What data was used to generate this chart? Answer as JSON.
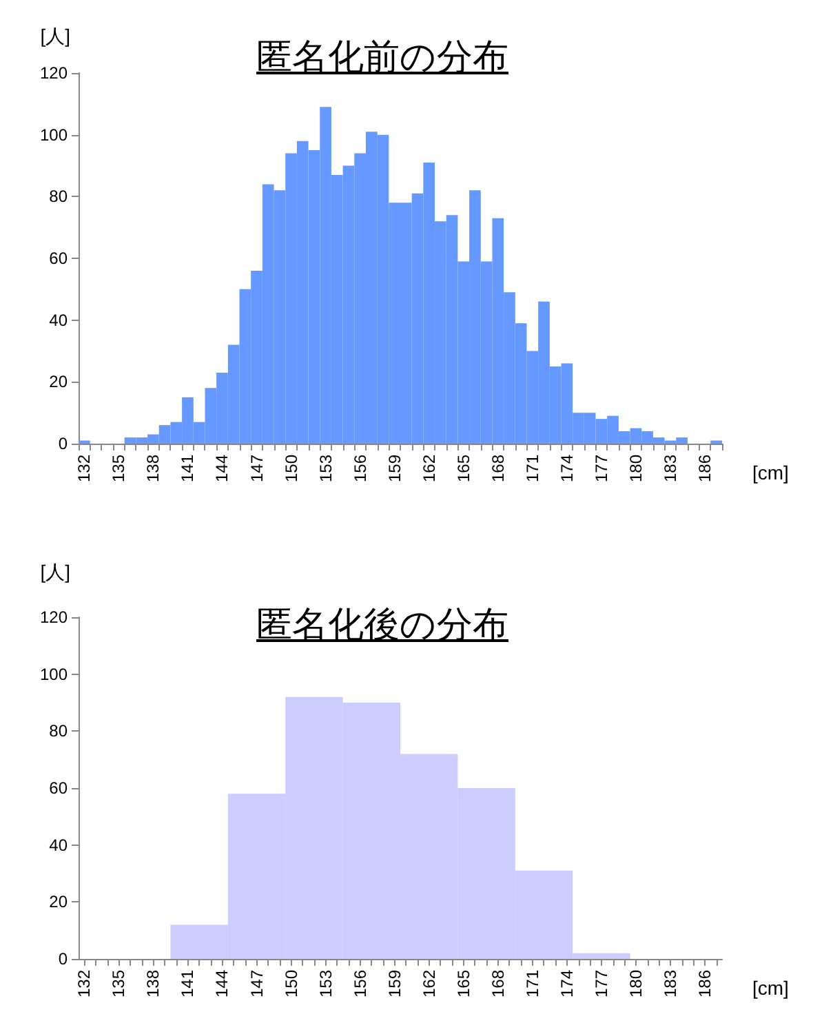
{
  "chart_data": [
    {
      "type": "bar",
      "title": "匿名化前の分布",
      "xlabel": "[cm]",
      "ylabel": "[人]",
      "color": "#6699ff",
      "ylim": [
        0,
        120
      ],
      "yticks": [
        0,
        20,
        40,
        60,
        80,
        100,
        120
      ],
      "categories": [
        "132",
        null,
        null,
        "135",
        null,
        null,
        "138",
        null,
        null,
        "141",
        null,
        null,
        "144",
        null,
        null,
        "147",
        null,
        null,
        "150",
        null,
        null,
        "153",
        null,
        null,
        "156",
        null,
        null,
        "159",
        null,
        null,
        "162",
        null,
        null,
        "165",
        null,
        null,
        "168",
        null,
        null,
        "171",
        null,
        null,
        "174",
        null,
        null,
        "177",
        null,
        null,
        "180",
        null,
        null,
        "183",
        null,
        null,
        "186",
        null
      ],
      "values": [
        1,
        0,
        0,
        0,
        2,
        2,
        3,
        6,
        7,
        15,
        7,
        18,
        23,
        32,
        50,
        56,
        84,
        82,
        94,
        98,
        95,
        109,
        87,
        90,
        94,
        101,
        100,
        78,
        78,
        81,
        91,
        72,
        74,
        59,
        82,
        59,
        73,
        49,
        39,
        30,
        46,
        25,
        26,
        10,
        10,
        8,
        9,
        4,
        5,
        4,
        2,
        1,
        2,
        0,
        0,
        1
      ]
    },
    {
      "type": "histogram",
      "title": "匿名化後の分布",
      "xlabel": "[cm]",
      "ylabel": "[人]",
      "color": "#ccccff",
      "ylim": [
        0,
        120
      ],
      "yticks": [
        0,
        20,
        40,
        60,
        80,
        100,
        120
      ],
      "xlim": [
        131.5,
        187.5
      ],
      "xticks": [
        132,
        {
          "value": 133,
          "label": null
        },
        {
          "value": 134,
          "label": null
        },
        135,
        {
          "value": 136,
          "label": null
        },
        {
          "value": 137,
          "label": null
        },
        138,
        {
          "value": 139,
          "label": null
        },
        {
          "value": 140,
          "label": null
        },
        141,
        {
          "value": 142,
          "label": null
        },
        {
          "value": 143,
          "label": null
        },
        144,
        {
          "value": 145,
          "label": null
        },
        {
          "value": 146,
          "label": null
        },
        147,
        {
          "value": 148,
          "label": null
        },
        {
          "value": 149,
          "label": null
        },
        150,
        {
          "value": 151,
          "label": null
        },
        {
          "value": 152,
          "label": null
        },
        153,
        {
          "value": 154,
          "label": null
        },
        {
          "value": 155,
          "label": null
        },
        156,
        {
          "value": 157,
          "label": null
        },
        {
          "value": 158,
          "label": null
        },
        159,
        {
          "value": 160,
          "label": null
        },
        {
          "value": 161,
          "label": null
        },
        162,
        {
          "value": 163,
          "label": null
        },
        {
          "value": 164,
          "label": null
        },
        165,
        {
          "value": 166,
          "label": null
        },
        {
          "value": 167,
          "label": null
        },
        168,
        {
          "value": 169,
          "label": null
        },
        {
          "value": 170,
          "label": null
        },
        171,
        {
          "value": 172,
          "label": null
        },
        {
          "value": 173,
          "label": null
        },
        174,
        {
          "value": 175,
          "label": null
        },
        {
          "value": 176,
          "label": null
        },
        177,
        {
          "value": 178,
          "label": null
        },
        {
          "value": 179,
          "label": null
        },
        180,
        {
          "value": 181,
          "label": null
        },
        {
          "value": 182,
          "label": null
        },
        183,
        {
          "value": 184,
          "label": null
        },
        {
          "value": 185,
          "label": null
        },
        186,
        {
          "value": 187,
          "label": null
        }
      ],
      "bins": [
        139.5,
        144.5,
        149.5,
        154.5,
        159.5,
        164.5,
        169.5,
        174.5,
        179.5
      ],
      "values": [
        12,
        58,
        92,
        90,
        72,
        60,
        31,
        2
      ]
    }
  ]
}
